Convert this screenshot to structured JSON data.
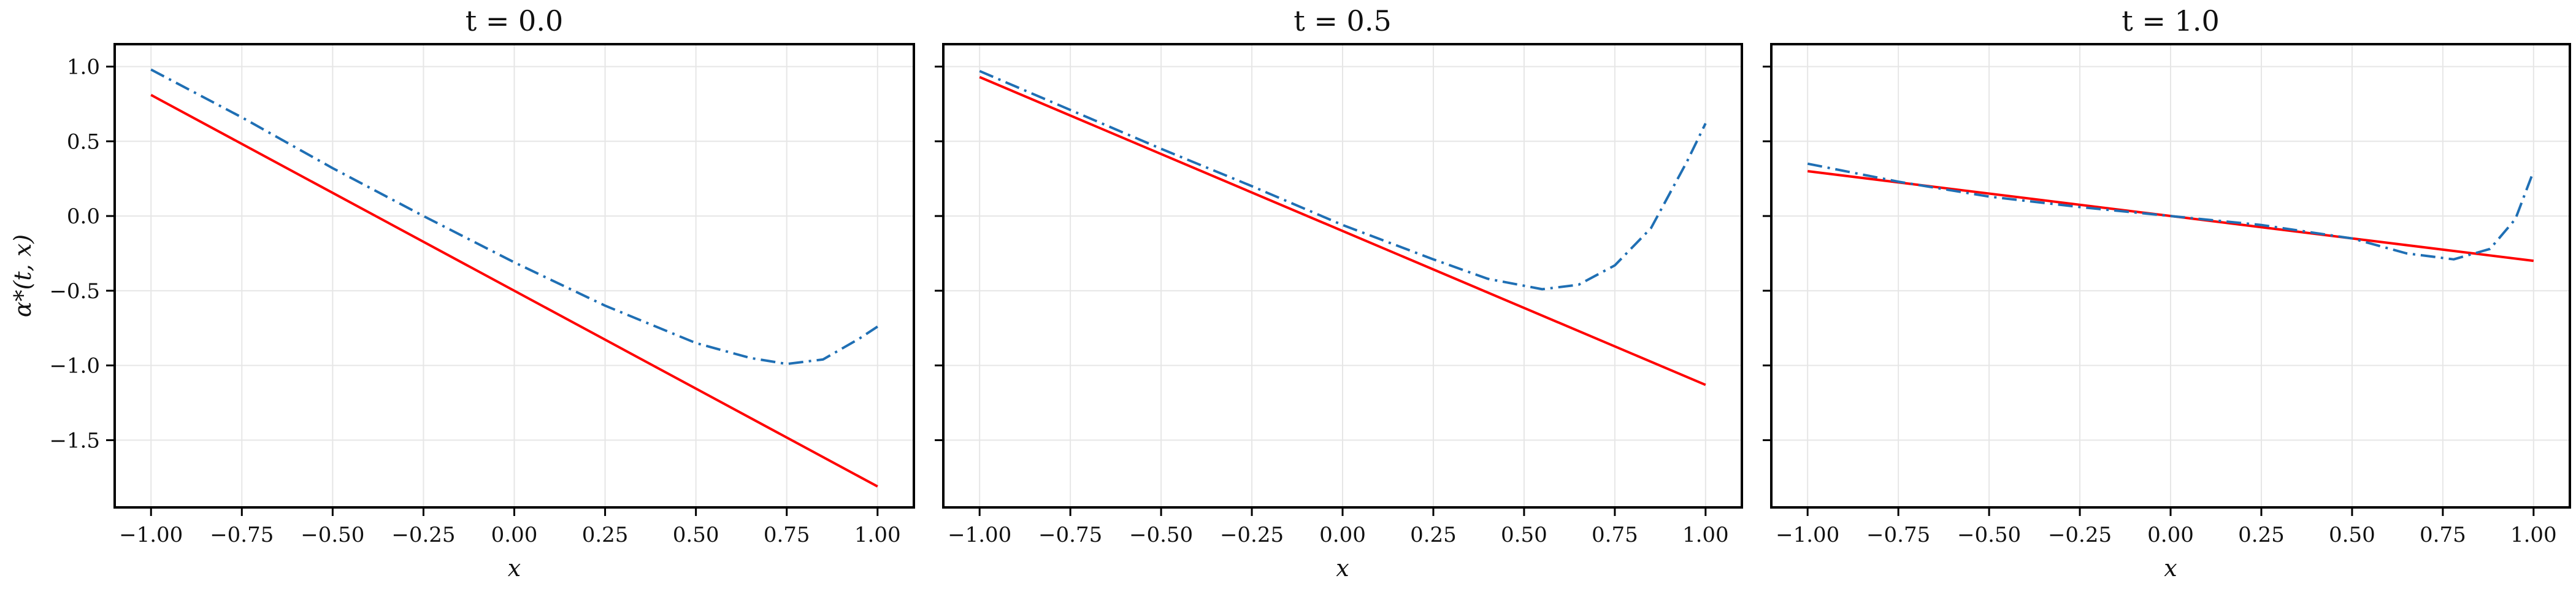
{
  "chart_data": [
    {
      "type": "line",
      "title": "t = 0.0",
      "xlabel": "x",
      "ylabel": "α*(t, x)",
      "xlim": [
        -1.1,
        1.1
      ],
      "ylim": [
        -1.95,
        1.15
      ],
      "xticks": [
        -1.0,
        -0.75,
        -0.5,
        -0.25,
        0.0,
        0.25,
        0.5,
        0.75,
        1.0
      ],
      "xtick_labels": [
        "−1.00",
        "−0.75",
        "−0.50",
        "−0.25",
        "0.00",
        "0.25",
        "0.50",
        "0.75",
        "1.00"
      ],
      "yticks": [
        1.0,
        0.5,
        0.0,
        -0.5,
        -1.0,
        -1.5
      ],
      "ytick_labels": [
        "1.0",
        "0.5",
        "0.0",
        "−0.5",
        "−1.0",
        "−1.5"
      ],
      "grid": true,
      "series": [
        {
          "style": "solid",
          "color": "#ff0000",
          "x": [
            -1.0,
            1.0
          ],
          "y": [
            0.81,
            -1.81
          ]
        },
        {
          "style": "dashdot",
          "color": "#1f6fb4",
          "x": [
            -1.0,
            -0.75,
            -0.5,
            -0.25,
            0.0,
            0.25,
            0.5,
            0.65,
            0.75,
            0.85,
            0.95,
            1.0
          ],
          "y": [
            0.98,
            0.66,
            0.32,
            0.0,
            -0.31,
            -0.6,
            -0.85,
            -0.95,
            -0.99,
            -0.96,
            -0.82,
            -0.74
          ]
        }
      ]
    },
    {
      "type": "line",
      "title": "t = 0.5",
      "xlabel": "x",
      "ylabel": "",
      "xlim": [
        -1.1,
        1.1
      ],
      "ylim": [
        -1.95,
        1.15
      ],
      "xticks": [
        -1.0,
        -0.75,
        -0.5,
        -0.25,
        0.0,
        0.25,
        0.5,
        0.75,
        1.0
      ],
      "xtick_labels": [
        "−1.00",
        "−0.75",
        "−0.50",
        "−0.25",
        "0.00",
        "0.25",
        "0.50",
        "0.75",
        "1.00"
      ],
      "yticks": [
        1.0,
        0.5,
        0.0,
        -0.5,
        -1.0,
        -1.5
      ],
      "ytick_labels": [],
      "grid": true,
      "series": [
        {
          "style": "solid",
          "color": "#ff0000",
          "x": [
            -1.0,
            1.0
          ],
          "y": [
            0.93,
            -1.13
          ]
        },
        {
          "style": "dashdot",
          "color": "#1f6fb4",
          "x": [
            -1.0,
            -0.75,
            -0.5,
            -0.25,
            0.0,
            0.25,
            0.4,
            0.55,
            0.65,
            0.75,
            0.85,
            0.95,
            1.0
          ],
          "y": [
            0.97,
            0.71,
            0.45,
            0.2,
            -0.06,
            -0.29,
            -0.42,
            -0.49,
            -0.46,
            -0.33,
            -0.08,
            0.37,
            0.62
          ]
        }
      ]
    },
    {
      "type": "line",
      "title": "t = 1.0",
      "xlabel": "x",
      "ylabel": "",
      "xlim": [
        -1.1,
        1.1
      ],
      "ylim": [
        -1.95,
        1.15
      ],
      "xticks": [
        -1.0,
        -0.75,
        -0.5,
        -0.25,
        0.0,
        0.25,
        0.5,
        0.75,
        1.0
      ],
      "xtick_labels": [
        "−1.00",
        "−0.75",
        "−0.50",
        "−0.25",
        "0.00",
        "0.25",
        "0.50",
        "0.75",
        "1.00"
      ],
      "yticks": [
        1.0,
        0.5,
        0.0,
        -0.5,
        -1.0,
        -1.5
      ],
      "ytick_labels": [],
      "grid": true,
      "series": [
        {
          "style": "solid",
          "color": "#ff0000",
          "x": [
            -1.0,
            1.0
          ],
          "y": [
            0.3,
            -0.3
          ]
        },
        {
          "style": "dashdot",
          "color": "#1f6fb4",
          "x": [
            -1.0,
            -0.75,
            -0.5,
            -0.25,
            0.0,
            0.25,
            0.5,
            0.65,
            0.78,
            0.88,
            0.95,
            1.0
          ],
          "y": [
            0.35,
            0.23,
            0.13,
            0.06,
            0.0,
            -0.06,
            -0.15,
            -0.25,
            -0.29,
            -0.22,
            -0.02,
            0.3
          ]
        }
      ]
    }
  ]
}
